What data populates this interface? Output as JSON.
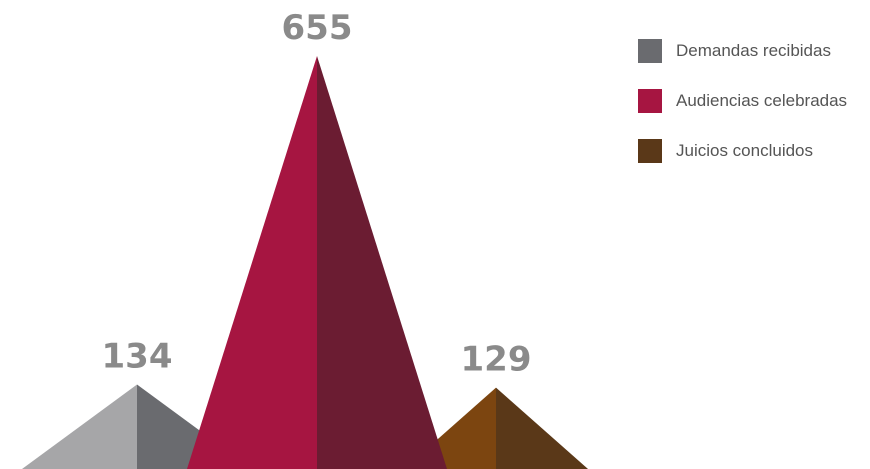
{
  "chart_data": {
    "type": "bar",
    "categories": [
      "Demandas recibidas",
      "Audiencias celebradas",
      "Juicios concluidos"
    ],
    "values": [
      134,
      655,
      129
    ],
    "title": "",
    "xlabel": "",
    "ylabel": "",
    "ylim": [
      0,
      655
    ],
    "grid": false,
    "legend_position": "top-right",
    "series_colors": [
      {
        "light": "#a6a6a8",
        "dark": "#6a6b6f"
      },
      {
        "light": "#a61541",
        "dark": "#6b1c32"
      },
      {
        "light": "#7c4510",
        "dark": "#5a3818"
      }
    ]
  },
  "legend": {
    "items": [
      {
        "label": "Demandas recibidas",
        "color": "#6a6b6f"
      },
      {
        "label": "Audiencias celebradas",
        "color": "#a61541"
      },
      {
        "label": "Juicios concluidos",
        "color": "#5a3818"
      }
    ]
  },
  "labels": {
    "v0": "134",
    "v1": "655",
    "v2": "129"
  }
}
